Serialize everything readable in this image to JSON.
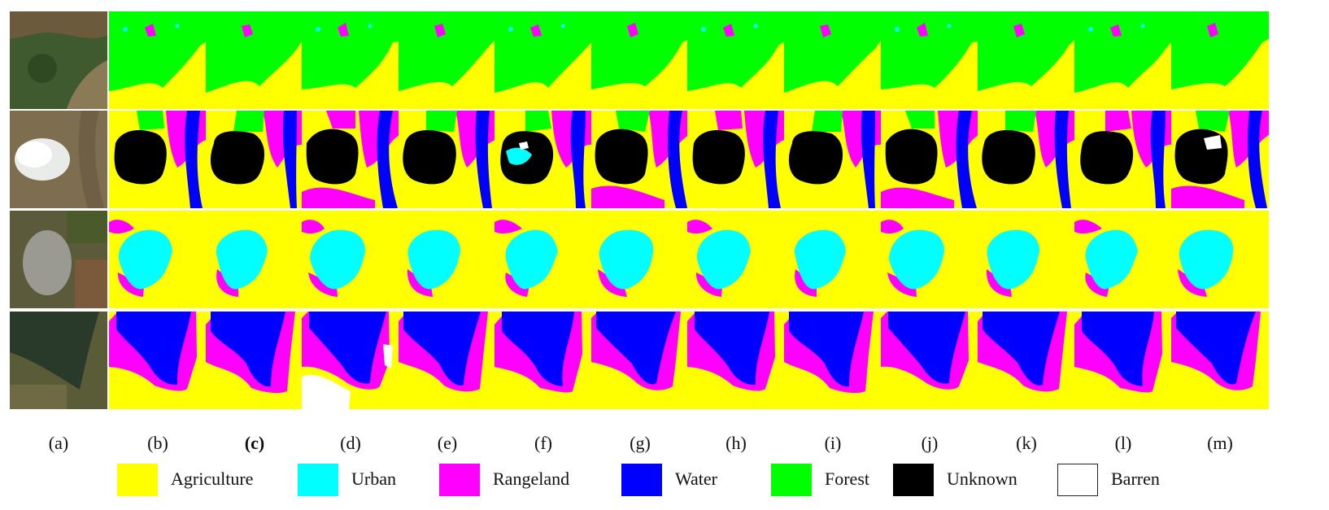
{
  "columns": [
    {
      "label": "(a)",
      "bold": false
    },
    {
      "label": "(b)",
      "bold": false
    },
    {
      "label": "(c)",
      "bold": true
    },
    {
      "label": "(d)",
      "bold": false
    },
    {
      "label": "(e)",
      "bold": false
    },
    {
      "label": "(f)",
      "bold": false
    },
    {
      "label": "(g)",
      "bold": false
    },
    {
      "label": "(h)",
      "bold": false
    },
    {
      "label": "(i)",
      "bold": false
    },
    {
      "label": "(j)",
      "bold": false
    },
    {
      "label": "(k)",
      "bold": false
    },
    {
      "label": "(l)",
      "bold": false
    },
    {
      "label": "(m)",
      "bold": false
    }
  ],
  "legend": [
    {
      "label": "Agriculture",
      "color": "#ffff00"
    },
    {
      "label": "Urban",
      "color": "#00ffff"
    },
    {
      "label": "Rangeland",
      "color": "#ff00ff"
    },
    {
      "label": "Water",
      "color": "#0000ff"
    },
    {
      "label": "Forest",
      "color": "#00ff00"
    },
    {
      "label": "Unknown",
      "color": "#000000"
    },
    {
      "label": "Barren",
      "color": "#ffffff"
    }
  ]
}
